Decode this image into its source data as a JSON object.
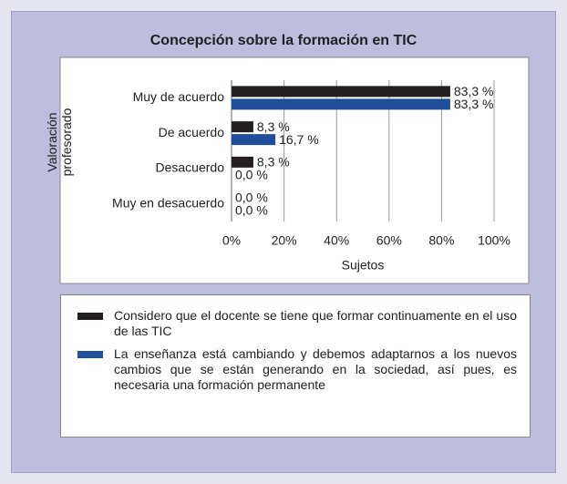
{
  "chart_data": {
    "type": "barh",
    "title": "Concepción sobre la formación en TIC",
    "xlabel": "Sujetos",
    "ylabel": "Valoración profesorado",
    "categories": [
      "Muy de acuerdo",
      "De acuerdo",
      "Desacuerdo",
      "Muy en desacuerdo"
    ],
    "series": [
      {
        "name": "Considero que el docente se tiene que formar continuamente en el uso de las TIC",
        "color": "#231f20",
        "values": [
          83.3,
          8.3,
          8.3,
          0.0
        ],
        "value_labels": [
          "83,3 %",
          "8,3 %",
          "8,3 %",
          "0,0 %"
        ]
      },
      {
        "name": "La enseñanza está cambiando y debemos adaptarnos a los nuevos cambios que se están generando en la sociedad, así pues, es necesaria una formación permanente",
        "color": "#1f4e9a",
        "values": [
          83.3,
          16.7,
          0.0,
          0.0
        ],
        "value_labels": [
          "83,3 %",
          "16,7 %",
          "0,0 %",
          "0,0 %"
        ]
      }
    ],
    "xlim": [
      0,
      100
    ],
    "xticks": [
      {
        "value": 0,
        "label": "0%"
      },
      {
        "value": 20,
        "label": "20%"
      },
      {
        "value": 40,
        "label": "40%"
      },
      {
        "value": 60,
        "label": "60%"
      },
      {
        "value": 80,
        "label": "80%"
      },
      {
        "value": 100,
        "label": "100%"
      }
    ],
    "grid": true
  }
}
